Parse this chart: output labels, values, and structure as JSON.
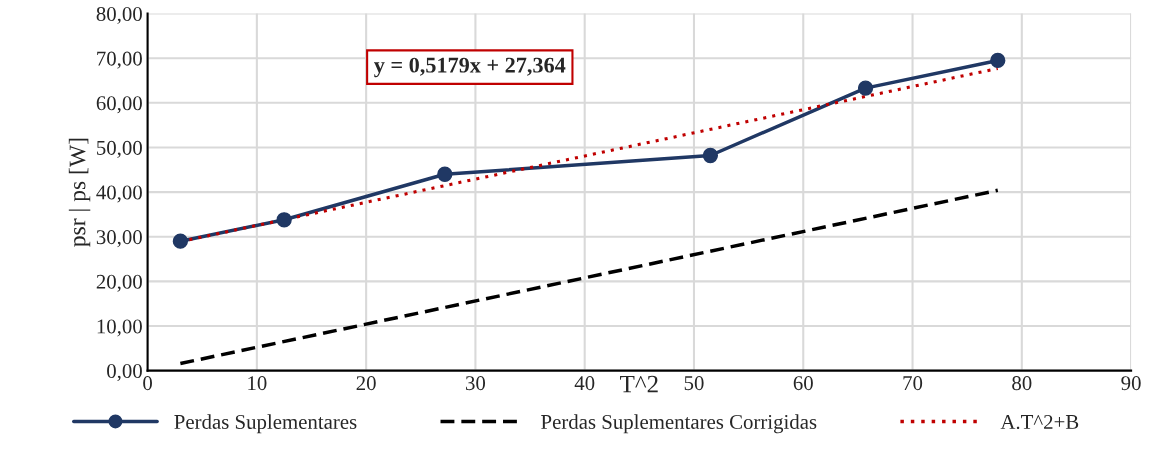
{
  "chart_data": {
    "type": "line",
    "ylabel": "psr | ps [W]",
    "xlabel": "T^2",
    "xlim": [
      0,
      90
    ],
    "xticks": [
      0,
      10,
      20,
      30,
      40,
      50,
      60,
      70,
      80,
      90
    ],
    "ylim": [
      0,
      80
    ],
    "yticks": [
      {
        "value": 0,
        "label": "0,00"
      },
      {
        "value": 10,
        "label": "10,00"
      },
      {
        "value": 20,
        "label": "20,00"
      },
      {
        "value": 30,
        "label": "30,00"
      },
      {
        "value": 40,
        "label": "40,00"
      },
      {
        "value": 50,
        "label": "50,00"
      },
      {
        "value": 60,
        "label": "60,00"
      },
      {
        "value": 70,
        "label": "70,00"
      },
      {
        "value": 80,
        "label": "80,00"
      }
    ],
    "grid": true,
    "legend": "bottom",
    "annotations": [
      "y = 0,5179x + 27,364"
    ],
    "series": [
      {
        "name": "Perdas Suplementares",
        "color": "#203864",
        "x": [
          3,
          12.5,
          27.2,
          51.5,
          65.7,
          77.8
        ],
        "values": [
          29.0,
          33.8,
          44.0,
          48.2,
          63.3,
          69.5
        ],
        "marker": "circle",
        "line_style": "solid"
      },
      {
        "name": "Perdas Suplementares Corrigidas",
        "color": "#000000",
        "x": [
          3,
          77.8
        ],
        "values": [
          1.6,
          40.4
        ],
        "marker": "none",
        "line_style": "dashed"
      },
      {
        "name": "A.T^2+B",
        "color": "#c00000",
        "x": [
          3,
          77.8
        ],
        "values": [
          28.9,
          67.7
        ],
        "marker": "none",
        "line_style": "dotted"
      }
    ]
  }
}
